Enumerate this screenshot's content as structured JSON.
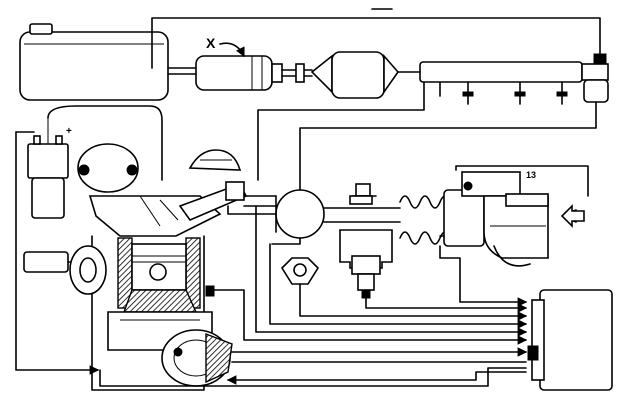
{
  "labels": {
    "component_x": "X",
    "component_13": "13",
    "ignition_terminal": "+"
  }
}
